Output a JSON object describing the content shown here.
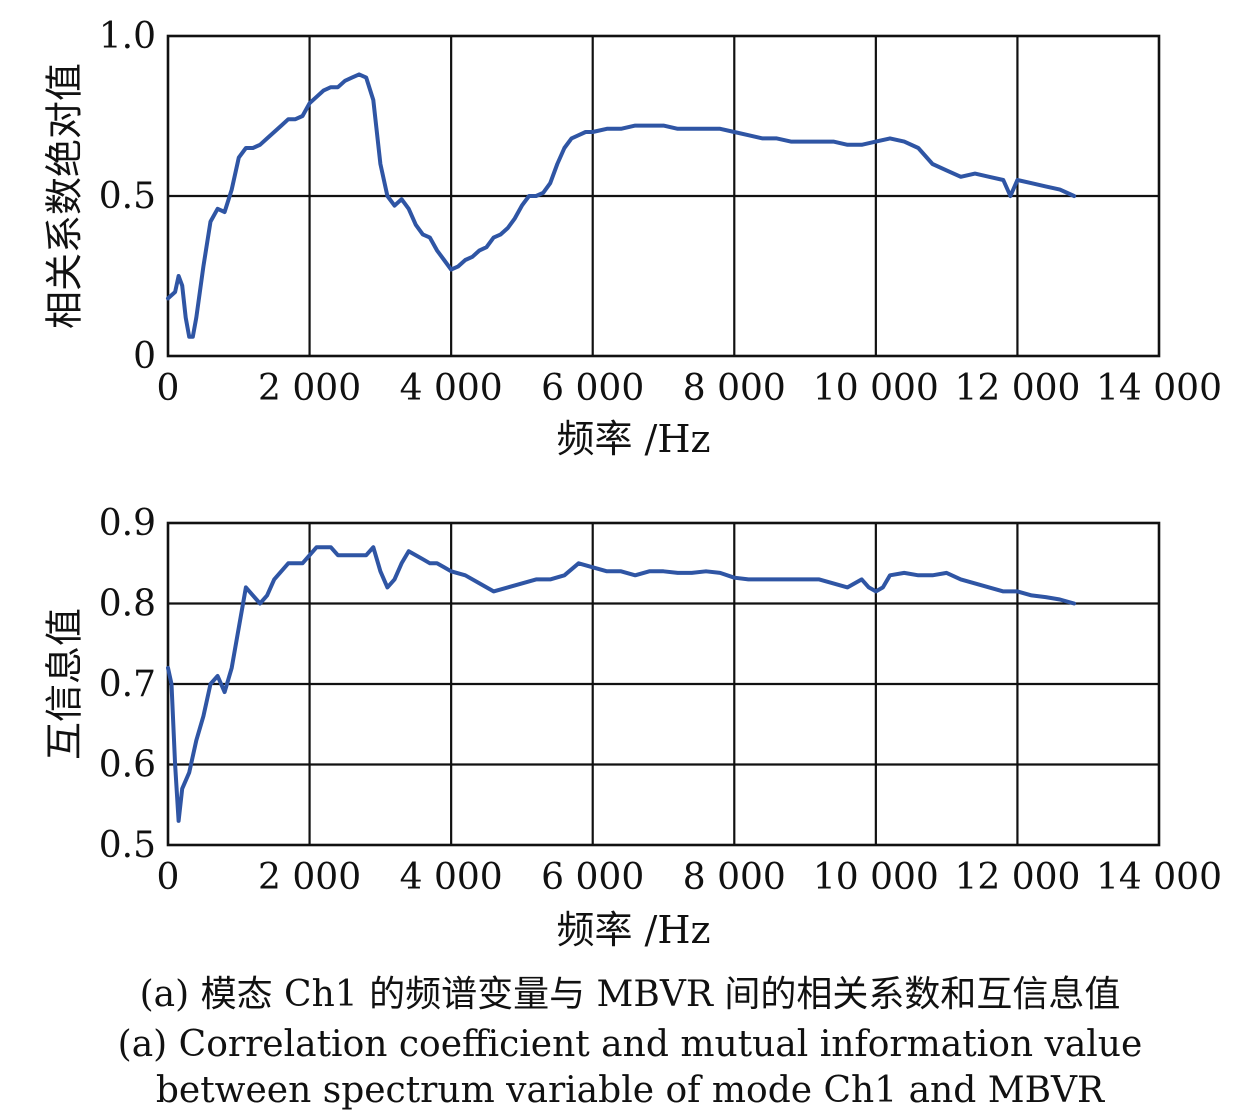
{
  "captions": {
    "zh": "(a) 模态 Ch1 的频谱变量与 MBVR 间的相关系数和互信息值",
    "en_line1": "(a) Correlation coefficient and mutual information value",
    "en_line2": "between spectrum variable of mode Ch1 and MBVR"
  },
  "colors": {
    "series": "#2f55a4",
    "axes": "#111111",
    "grid": "#111111",
    "background": "#ffffff"
  },
  "chart_data": [
    {
      "type": "line",
      "title": "",
      "xlabel": "频率 /Hz",
      "ylabel": "相关系数绝对值",
      "xlim": [
        0,
        14000
      ],
      "ylim": [
        0,
        1.0
      ],
      "xticks": [
        0,
        2000,
        4000,
        6000,
        8000,
        10000,
        12000,
        14000
      ],
      "xtick_labels": [
        "0",
        "2 000",
        "4 000",
        "6 000",
        "8 000",
        "10 000",
        "12 000",
        "14 000"
      ],
      "yticks": [
        0,
        0.5,
        1.0
      ],
      "ytick_labels": [
        "0",
        "0.5",
        "1.0"
      ],
      "grid": true,
      "legend": "none",
      "series": [
        {
          "x": [
            0,
            100,
            150,
            200,
            250,
            300,
            350,
            400,
            500,
            600,
            700,
            800,
            900,
            1000,
            1100,
            1200,
            1300,
            1400,
            1500,
            1600,
            1700,
            1800,
            1900,
            2000,
            2100,
            2200,
            2300,
            2400,
            2500,
            2600,
            2700,
            2800,
            2900,
            3000,
            3100,
            3200,
            3300,
            3400,
            3500,
            3600,
            3700,
            3800,
            3900,
            4000,
            4100,
            4200,
            4300,
            4400,
            4500,
            4600,
            4700,
            4800,
            4900,
            5000,
            5100,
            5200,
            5300,
            5400,
            5500,
            5600,
            5700,
            5800,
            5900,
            6000,
            6200,
            6400,
            6600,
            6800,
            7000,
            7200,
            7400,
            7600,
            7800,
            8000,
            8200,
            8400,
            8600,
            8800,
            9000,
            9200,
            9400,
            9600,
            9800,
            10000,
            10200,
            10400,
            10600,
            10800,
            11000,
            11200,
            11400,
            11600,
            11800,
            11900,
            12000,
            12200,
            12400,
            12600,
            12800
          ],
          "y": [
            0.18,
            0.2,
            0.25,
            0.22,
            0.12,
            0.06,
            0.06,
            0.12,
            0.28,
            0.42,
            0.46,
            0.45,
            0.52,
            0.62,
            0.65,
            0.65,
            0.66,
            0.68,
            0.7,
            0.72,
            0.74,
            0.74,
            0.75,
            0.79,
            0.81,
            0.83,
            0.84,
            0.84,
            0.86,
            0.87,
            0.88,
            0.87,
            0.8,
            0.6,
            0.5,
            0.47,
            0.49,
            0.46,
            0.41,
            0.38,
            0.37,
            0.33,
            0.3,
            0.27,
            0.28,
            0.3,
            0.31,
            0.33,
            0.34,
            0.37,
            0.38,
            0.4,
            0.43,
            0.47,
            0.5,
            0.5,
            0.51,
            0.54,
            0.6,
            0.65,
            0.68,
            0.69,
            0.7,
            0.7,
            0.71,
            0.71,
            0.72,
            0.72,
            0.72,
            0.71,
            0.71,
            0.71,
            0.71,
            0.7,
            0.69,
            0.68,
            0.68,
            0.67,
            0.67,
            0.67,
            0.67,
            0.66,
            0.66,
            0.67,
            0.68,
            0.67,
            0.65,
            0.6,
            0.58,
            0.56,
            0.57,
            0.56,
            0.55,
            0.5,
            0.55,
            0.54,
            0.53,
            0.52,
            0.5
          ]
        }
      ]
    },
    {
      "type": "line",
      "title": "",
      "xlabel": "频率 /Hz",
      "ylabel": "互信息值",
      "xlim": [
        0,
        14000
      ],
      "ylim": [
        0.5,
        0.9
      ],
      "xticks": [
        0,
        2000,
        4000,
        6000,
        8000,
        10000,
        12000,
        14000
      ],
      "xtick_labels": [
        "0",
        "2 000",
        "4 000",
        "6 000",
        "8 000",
        "10 000",
        "12 000",
        "14 000"
      ],
      "yticks": [
        0.5,
        0.6,
        0.7,
        0.8,
        0.9
      ],
      "ytick_labels": [
        "0.5",
        "0.6",
        "0.7",
        "0.8",
        "0.9"
      ],
      "grid": true,
      "legend": "none",
      "series": [
        {
          "x": [
            0,
            50,
            100,
            150,
            200,
            300,
            400,
            500,
            600,
            700,
            800,
            900,
            1000,
            1100,
            1200,
            1300,
            1400,
            1500,
            1600,
            1700,
            1800,
            1900,
            2000,
            2100,
            2200,
            2300,
            2400,
            2500,
            2600,
            2700,
            2800,
            2900,
            3000,
            3100,
            3200,
            3300,
            3400,
            3500,
            3600,
            3700,
            3800,
            3900,
            4000,
            4200,
            4400,
            4600,
            4800,
            5000,
            5200,
            5400,
            5600,
            5800,
            6000,
            6200,
            6400,
            6600,
            6800,
            7000,
            7200,
            7400,
            7600,
            7800,
            8000,
            8200,
            8400,
            8600,
            8800,
            9000,
            9200,
            9400,
            9600,
            9800,
            9900,
            10000,
            10100,
            10200,
            10400,
            10600,
            10800,
            11000,
            11200,
            11400,
            11600,
            11800,
            12000,
            12200,
            12400,
            12600,
            12800
          ],
          "y": [
            0.72,
            0.7,
            0.6,
            0.53,
            0.57,
            0.59,
            0.63,
            0.66,
            0.7,
            0.71,
            0.69,
            0.72,
            0.77,
            0.82,
            0.81,
            0.8,
            0.81,
            0.83,
            0.84,
            0.85,
            0.85,
            0.85,
            0.86,
            0.87,
            0.87,
            0.87,
            0.86,
            0.86,
            0.86,
            0.86,
            0.86,
            0.87,
            0.84,
            0.82,
            0.83,
            0.85,
            0.865,
            0.86,
            0.855,
            0.85,
            0.85,
            0.845,
            0.84,
            0.835,
            0.825,
            0.815,
            0.82,
            0.825,
            0.83,
            0.83,
            0.835,
            0.85,
            0.845,
            0.84,
            0.84,
            0.835,
            0.84,
            0.84,
            0.838,
            0.838,
            0.84,
            0.838,
            0.832,
            0.83,
            0.83,
            0.83,
            0.83,
            0.83,
            0.83,
            0.825,
            0.82,
            0.83,
            0.82,
            0.815,
            0.82,
            0.835,
            0.838,
            0.835,
            0.835,
            0.838,
            0.83,
            0.825,
            0.82,
            0.815,
            0.815,
            0.81,
            0.808,
            0.805,
            0.8
          ]
        }
      ]
    }
  ]
}
